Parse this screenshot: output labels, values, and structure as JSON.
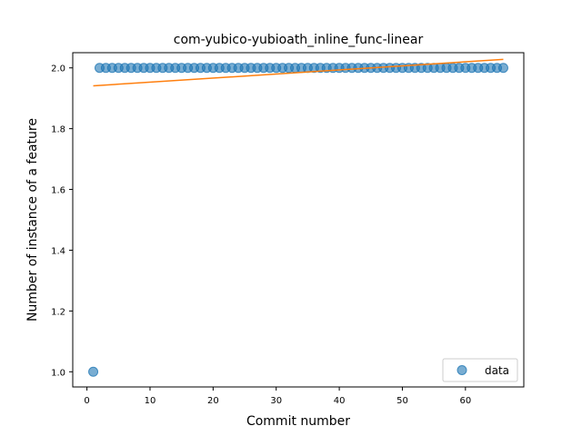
{
  "chart_data": {
    "type": "scatter",
    "title": "com-yubico-yubioath_inline_func-linear",
    "xlabel": "Commit number",
    "ylabel": "Number of instance of a feature",
    "xlim": [
      -2.25,
      69.25
    ],
    "ylim": [
      0.95,
      2.05
    ],
    "xticks": [
      0,
      10,
      20,
      30,
      40,
      50,
      60
    ],
    "yticks": [
      1.0,
      1.2,
      1.4,
      1.6,
      1.8,
      2.0
    ],
    "xtick_labels": [
      "0",
      "10",
      "20",
      "30",
      "40",
      "50",
      "60"
    ],
    "ytick_labels": [
      "1.0",
      "1.2",
      "1.4",
      "1.6",
      "1.8",
      "2.0"
    ],
    "grid": false,
    "legend": {
      "position": "lower-right",
      "entries": [
        "data"
      ]
    },
    "series": [
      {
        "name": "data",
        "kind": "scatter",
        "color": "#1f77b4",
        "x": [
          1,
          2,
          3,
          4,
          5,
          6,
          7,
          8,
          9,
          10,
          11,
          12,
          13,
          14,
          15,
          16,
          17,
          18,
          19,
          20,
          21,
          22,
          23,
          24,
          25,
          26,
          27,
          28,
          29,
          30,
          31,
          32,
          33,
          34,
          35,
          36,
          37,
          38,
          39,
          40,
          41,
          42,
          43,
          44,
          45,
          46,
          47,
          48,
          49,
          50,
          51,
          52,
          53,
          54,
          55,
          56,
          57,
          58,
          59,
          60,
          61,
          62,
          63,
          64,
          65,
          66
        ],
        "y": [
          1,
          2,
          2,
          2,
          2,
          2,
          2,
          2,
          2,
          2,
          2,
          2,
          2,
          2,
          2,
          2,
          2,
          2,
          2,
          2,
          2,
          2,
          2,
          2,
          2,
          2,
          2,
          2,
          2,
          2,
          2,
          2,
          2,
          2,
          2,
          2,
          2,
          2,
          2,
          2,
          2,
          2,
          2,
          2,
          2,
          2,
          2,
          2,
          2,
          2,
          2,
          2,
          2,
          2,
          2,
          2,
          2,
          2,
          2,
          2,
          2,
          2,
          2,
          2,
          2,
          2
        ]
      },
      {
        "kind": "line",
        "color": "#ff7f0e",
        "x": [
          1,
          66
        ],
        "y": [
          1.941,
          2.028
        ]
      }
    ]
  }
}
